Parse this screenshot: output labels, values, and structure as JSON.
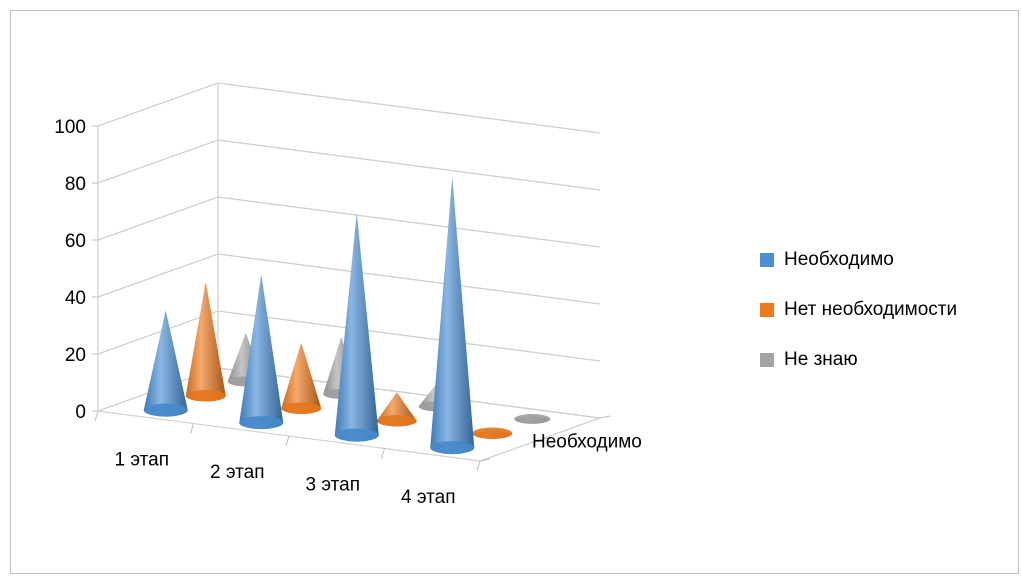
{
  "chart_data": {
    "type": "bar",
    "shape": "3d-cone",
    "title": "",
    "xlabel": "",
    "ylabel": "",
    "ylim": [
      0,
      100
    ],
    "yticks": [
      "0",
      "20",
      "40",
      "60",
      "80",
      "100"
    ],
    "categories": [
      "1 этап",
      "2 этап",
      "3 этап",
      "4 этап"
    ],
    "depth_label": "Необходимо",
    "grid": true,
    "legend_position": "right",
    "series": [
      {
        "name": "Необходимо",
        "color": "#4a8fd6",
        "values": [
          35,
          52,
          78,
          95
        ]
      },
      {
        "name": "Нет необходимости",
        "color": "#ef7b1f",
        "values": [
          40,
          23,
          10,
          1
        ]
      },
      {
        "name": "Не знаю",
        "color": "#a5a5a5",
        "values": [
          17,
          20,
          8,
          1
        ]
      }
    ]
  }
}
